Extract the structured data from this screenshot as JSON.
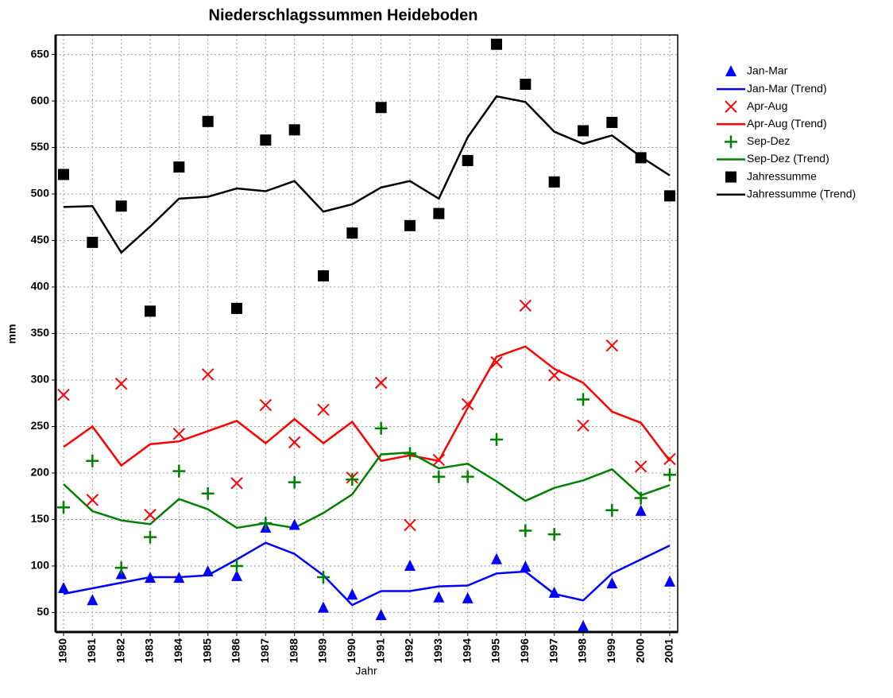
{
  "chart_data": {
    "type": "line",
    "title": "Niederschlagssummen Heideboden",
    "x_label": "Jahr",
    "y_label": "mm",
    "categories": [
      "1980",
      "1981",
      "1982",
      "1983",
      "1984",
      "1985",
      "1986",
      "1987",
      "1988",
      "1989",
      "1990",
      "1991",
      "1992",
      "1993",
      "1994",
      "1995",
      "1996",
      "1997",
      "1998",
      "1999",
      "2000",
      "2001"
    ],
    "ylim": [
      29,
      671
    ],
    "yticks": [
      50,
      100,
      150,
      200,
      250,
      300,
      350,
      400,
      450,
      500,
      550,
      600,
      650
    ],
    "grid": true,
    "legend": "right",
    "series": [
      {
        "name": "Jan-Mar",
        "color": "#0000ff",
        "mode": "markers",
        "marker": "triangle",
        "values": [
          76,
          63,
          91,
          87,
          87,
          94,
          89,
          141,
          144,
          55,
          69,
          47,
          100,
          66,
          65,
          107,
          99,
          71,
          35,
          81,
          159,
          83
        ]
      },
      {
        "name": "Jan-Mar (Trend)",
        "color": "#0000ff",
        "mode": "line",
        "values": [
          70,
          76,
          82,
          88,
          88,
          90,
          107,
          125,
          113,
          90,
          58,
          73,
          73,
          78,
          79,
          92,
          94,
          70,
          63,
          92,
          107,
          122
        ]
      },
      {
        "name": "Apr-Aug",
        "color": "#ff0000",
        "mode": "markers",
        "marker": "x",
        "values": [
          284,
          171,
          296,
          155,
          242,
          306,
          189,
          273,
          233,
          268,
          195,
          297,
          144,
          214,
          274,
          319,
          380,
          305,
          251,
          337,
          207,
          215
        ]
      },
      {
        "name": "Apr-Aug (Trend)",
        "color": "#ff0000",
        "mode": "line",
        "values": [
          228,
          250,
          208,
          231,
          234,
          245,
          256,
          232,
          258,
          232,
          255,
          213,
          219,
          213,
          270,
          325,
          336,
          312,
          297,
          266,
          254,
          213
        ]
      },
      {
        "name": "Sep-Dez",
        "color": "#008000",
        "mode": "markers",
        "marker": "plus",
        "values": [
          163,
          213,
          98,
          131,
          202,
          178,
          100,
          146,
          190,
          88,
          193,
          248,
          221,
          196,
          196,
          236,
          138,
          134,
          279,
          160,
          173,
          198
        ]
      },
      {
        "name": "Sep-Dez (Trend)",
        "color": "#008000",
        "mode": "line",
        "values": [
          188,
          159,
          149,
          145,
          172,
          161,
          141,
          146,
          141,
          157,
          177,
          220,
          222,
          205,
          210,
          191,
          170,
          184,
          192,
          204,
          176,
          187
        ]
      },
      {
        "name": "Jahressumme",
        "color": "#000000",
        "mode": "markers",
        "marker": "square",
        "values": [
          521,
          448,
          487,
          374,
          529,
          578,
          377,
          558,
          569,
          412,
          458,
          593,
          466,
          479,
          536,
          661,
          618,
          513,
          568,
          577,
          539,
          498
        ]
      },
      {
        "name": "Jahressumme (Trend)",
        "color": "#000000",
        "mode": "line",
        "values": [
          486,
          487,
          437,
          465,
          495,
          497,
          506,
          503,
          514,
          481,
          489,
          507,
          514,
          495,
          561,
          605,
          599,
          567,
          554,
          563,
          540,
          520
        ]
      }
    ]
  }
}
